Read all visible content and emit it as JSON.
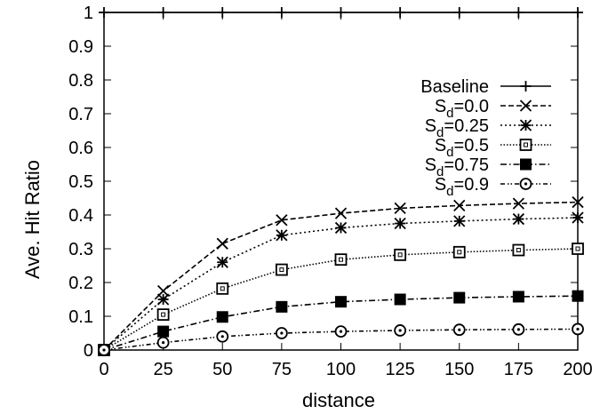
{
  "chart_data": {
    "type": "line",
    "title": "",
    "xlabel": "distance",
    "ylabel": "Ave. Hit Ratio",
    "x": [
      0,
      25,
      50,
      75,
      100,
      125,
      150,
      175,
      200
    ],
    "xlim": [
      0,
      200
    ],
    "ylim": [
      0,
      1
    ],
    "xticks": [
      "0",
      "25",
      "50",
      "75",
      "100",
      "125",
      "150",
      "175",
      "200"
    ],
    "yticks": [
      "0",
      "0.1",
      "0.2",
      "0.3",
      "0.4",
      "0.5",
      "0.6",
      "0.7",
      "0.8",
      "0.9",
      "1"
    ],
    "grid": false,
    "legend_position": "top-right",
    "series": [
      {
        "name": "Baseline",
        "marker": "plus",
        "dash": "solid",
        "values": [
          1,
          1,
          1,
          1,
          1,
          1,
          1,
          1,
          1
        ]
      },
      {
        "name": "Sd=0.0",
        "label_main": "S",
        "label_sub": "d",
        "label_rest": "=0.0",
        "marker": "cross",
        "dash": "dashed",
        "values": [
          0,
          0.175,
          0.315,
          0.385,
          0.405,
          0.42,
          0.428,
          0.434,
          0.438
        ]
      },
      {
        "name": "Sd=0.25",
        "label_main": "S",
        "label_sub": "d",
        "label_rest": "=0.25",
        "marker": "star",
        "dash": "dotted",
        "values": [
          0,
          0.15,
          0.26,
          0.34,
          0.362,
          0.375,
          0.382,
          0.388,
          0.392
        ]
      },
      {
        "name": "Sd=0.5",
        "label_main": "S",
        "label_sub": "d",
        "label_rest": "=0.5",
        "marker": "open-square",
        "dash": "fine-dotted",
        "values": [
          0,
          0.105,
          0.182,
          0.238,
          0.268,
          0.282,
          0.29,
          0.296,
          0.3
        ]
      },
      {
        "name": "Sd=0.75",
        "label_main": "S",
        "label_sub": "d",
        "label_rest": "=0.75",
        "marker": "filled-square",
        "dash": "dash-dot",
        "values": [
          0,
          0.055,
          0.098,
          0.128,
          0.143,
          0.15,
          0.155,
          0.158,
          0.16
        ]
      },
      {
        "name": "Sd=0.9",
        "label_main": "S",
        "label_sub": "d",
        "label_rest": "=0.9",
        "marker": "open-circle",
        "dash": "dash-dot-dot",
        "values": [
          0,
          0.022,
          0.04,
          0.05,
          0.055,
          0.058,
          0.06,
          0.061,
          0.062
        ]
      }
    ]
  }
}
